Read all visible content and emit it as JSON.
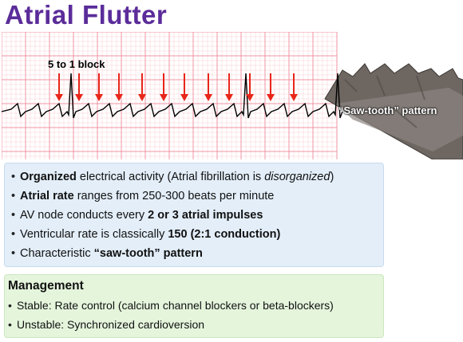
{
  "title": "Atrial Flutter",
  "ecg": {
    "block_label": "5 to 1 block",
    "saw_label": "“Saw-tooth” pattern",
    "grid_color": "#f08a9a",
    "trace_color": "#000000",
    "arrow_color": "#e8261a"
  },
  "features": [
    {
      "b1": "Organized",
      "t1": " electrical activity (Atrial fibrillation is ",
      "i1": "disorganized",
      "t2": ")"
    },
    {
      "b1": "Atrial rate",
      "t1": " ranges from 250-300 beats per minute"
    },
    {
      "t0": "AV node conducts every ",
      "b2": "2 or 3 atrial impulses"
    },
    {
      "t0": "Ventricular rate is classically ",
      "b2": "150 (2:1 conduction)"
    },
    {
      "t0": "Characteristic ",
      "b2": "“saw-tooth” pattern"
    }
  ],
  "management": {
    "title": "Management",
    "items": [
      "Stable: Rate control (calcium channel blockers or beta-blockers)",
      "Unstable: Synchronized cardioversion"
    ]
  }
}
